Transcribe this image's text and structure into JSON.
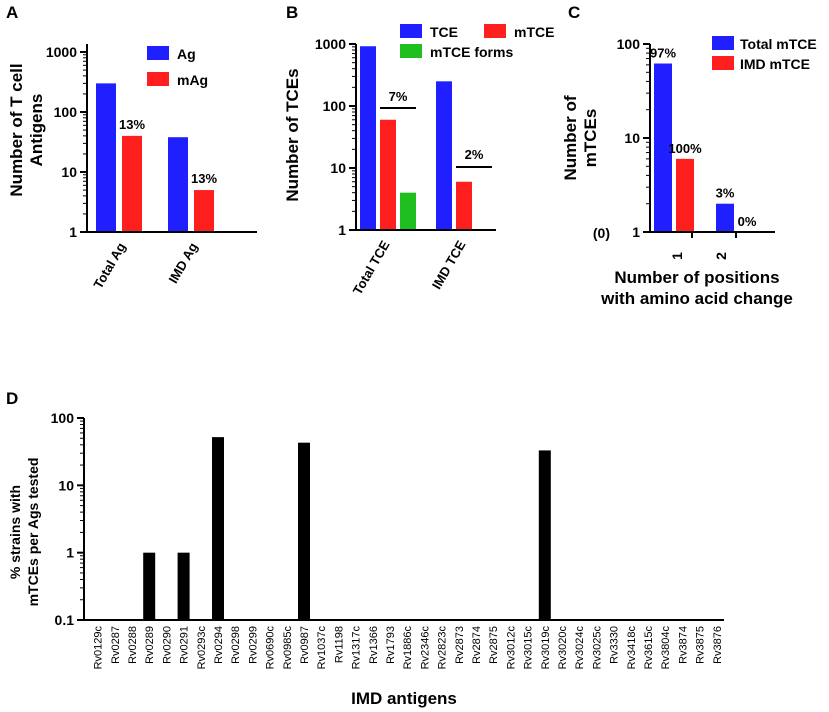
{
  "colors": {
    "blue": "#1f1fff",
    "red": "#ff1f1f",
    "green": "#1fbf1f",
    "black": "#000000"
  },
  "chart_data": [
    {
      "id": "A",
      "type": "bar",
      "panel_label": "A",
      "scale": "log",
      "ylim": [
        1,
        1000
      ],
      "yticks": [
        1,
        10,
        100,
        1000
      ],
      "ytick_labels": [
        "1",
        "10",
        "100",
        "1000"
      ],
      "ylabel": [
        "Number of T cell",
        "Antigens"
      ],
      "categories": [
        "Total Ag",
        "IMD Ag"
      ],
      "series": [
        {
          "name": "Ag",
          "color": "#1f1fff",
          "values": [
            300,
            38
          ]
        },
        {
          "name": "mAg",
          "color": "#ff1f1f",
          "values": [
            40,
            5
          ]
        }
      ],
      "annotations": [
        "13%",
        "13%"
      ]
    },
    {
      "id": "B",
      "type": "bar",
      "panel_label": "B",
      "scale": "log",
      "ylim": [
        1,
        1000
      ],
      "yticks": [
        1,
        10,
        100,
        1000
      ],
      "ytick_labels": [
        "1",
        "10",
        "100",
        "1000"
      ],
      "ylabel": "Number of TCEs",
      "categories": [
        "Total TCE",
        "IMD TCE"
      ],
      "series": [
        {
          "name": "TCE",
          "color": "#1f1fff",
          "values": [
            920,
            250
          ]
        },
        {
          "name": "mTCE",
          "color": "#ff1f1f",
          "values": [
            60,
            6
          ]
        },
        {
          "name": "mTCE forms",
          "color": "#1fbf1f",
          "values": [
            4,
            null
          ]
        }
      ],
      "annotations": [
        "7%",
        "2%"
      ]
    },
    {
      "id": "C",
      "type": "bar",
      "panel_label": "C",
      "scale": "log",
      "ylim": [
        1,
        100
      ],
      "yticks": [
        1,
        10,
        100
      ],
      "ytick_labels": [
        "1",
        "10",
        "100"
      ],
      "zero_label": "(0)",
      "ylabel": [
        "Number of",
        "mTCEs"
      ],
      "xlabel": [
        "Number of positions",
        "with amino acid change"
      ],
      "categories": [
        "1",
        "2"
      ],
      "series": [
        {
          "name": "Total mTCE",
          "color": "#1f1fff",
          "values": [
            62,
            2
          ]
        },
        {
          "name": "IMD mTCE",
          "color": "#ff1f1f",
          "values": [
            6,
            0
          ]
        }
      ],
      "annotations": [
        "97%",
        "100%",
        "3%",
        "0%"
      ]
    },
    {
      "id": "D",
      "type": "bar",
      "panel_label": "D",
      "scale": "log",
      "ylim": [
        0.1,
        100
      ],
      "yticks": [
        0.1,
        1,
        10,
        100
      ],
      "ytick_labels": [
        "0.1",
        "1",
        "10",
        "100"
      ],
      "ylabel": [
        "% strains with",
        "mTCEs per Ags tested"
      ],
      "xlabel": "IMD antigens",
      "color": "#000000",
      "categories": [
        "Rv0129c",
        "Rv0287",
        "Rv0288",
        "Rv0289",
        "Rv0290",
        "Rv0291",
        "Rv0293c",
        "Rv0294",
        "Rv0298",
        "Rv0299",
        "Rv0690c",
        "Rv0985c",
        "Rv0987",
        "Rv1037c",
        "Rv1198",
        "Rv1317c",
        "Rv1366",
        "Rv1793",
        "Rv1886c",
        "Rv2346c",
        "Rv2823c",
        "Rv2873",
        "Rv2874",
        "Rv2875",
        "Rv3012c",
        "Rv3015c",
        "Rv3019c",
        "Rv3020c",
        "Rv3024c",
        "Rv3025c",
        "Rv3330",
        "Rv3418c",
        "Rv3615c",
        "Rv3804c",
        "Rv3874",
        "Rv3875",
        "Rv3876"
      ],
      "values": [
        0,
        0,
        0,
        1,
        0,
        1,
        0,
        52,
        0,
        0,
        0,
        0,
        43,
        0,
        0,
        0,
        0,
        0,
        0,
        0,
        0,
        0,
        0,
        0,
        0,
        0,
        33,
        0,
        0,
        0,
        0,
        0,
        0,
        0,
        0,
        0,
        0
      ]
    }
  ]
}
